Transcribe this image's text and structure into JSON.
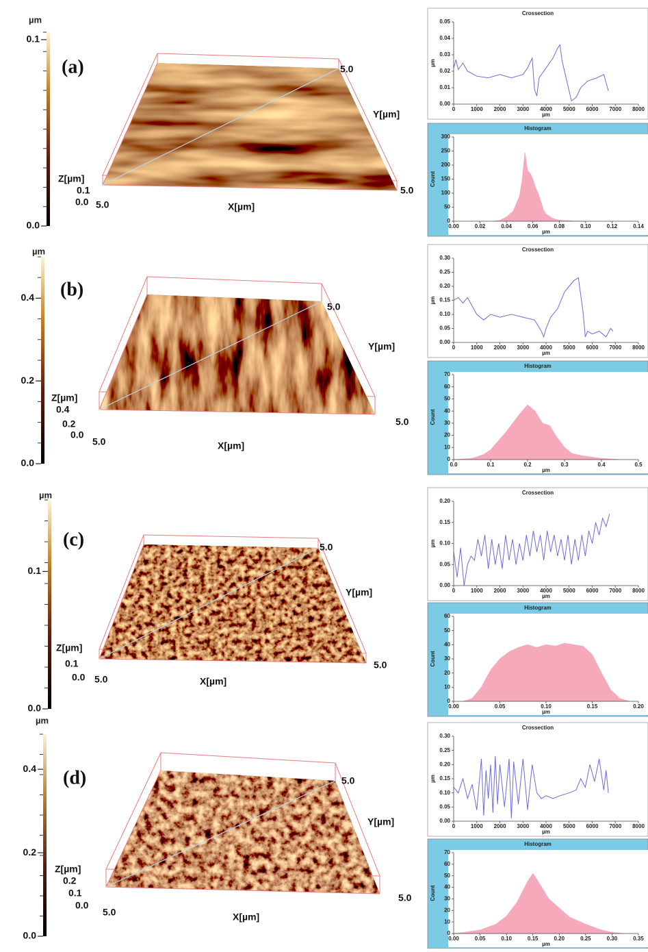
{
  "panels": [
    {
      "label": "(a)",
      "colorbar": {
        "unit": "µm",
        "ylim": [
          0,
          0.104
        ],
        "ticks": [
          {
            "value": 0,
            "label": "0.0"
          },
          0.1
        ]
      },
      "surface": {
        "z_label": "Z[µm]",
        "z_ticks": [
          "0.1",
          "0.0"
        ],
        "origin": "5.0",
        "x_label": "X[µm]",
        "x_end": "5.0",
        "y_label": "Y[µm]",
        "y_end": "5.0"
      }
    },
    {
      "label": "(b)",
      "colorbar": {
        "unit": "µm",
        "ylim": [
          0,
          0.5
        ],
        "ticks": [
          {
            "value": 0,
            "label": "0.0"
          },
          0.2,
          0.4
        ]
      },
      "surface": {
        "z_label": "Z[µm]",
        "z_ticks": [
          "0.4",
          "0.2",
          "0.0"
        ],
        "origin": "5.0",
        "x_label": "X[µm]",
        "x_end": "5.0",
        "y_label": "Y[µm]",
        "y_end": "5.0"
      }
    },
    {
      "label": "(c)",
      "colorbar": {
        "unit": "µm",
        "ylim": [
          0,
          0.152
        ],
        "ticks": [
          {
            "value": 0,
            "label": "0.0"
          },
          0.1
        ]
      },
      "surface": {
        "z_label": "Z[µm]",
        "z_ticks": [
          "0.1",
          "0.0"
        ],
        "origin": "5.0",
        "x_label": "X[µm]",
        "x_end": "5.0",
        "y_label": "Y[µm]",
        "y_end": "5.0"
      }
    },
    {
      "label": "(d)",
      "colorbar": {
        "unit": "µm",
        "ylim": [
          0,
          0.484
        ],
        "ticks": [
          {
            "value": 0,
            "label": "0.0"
          },
          0.2,
          0.4
        ]
      },
      "surface": {
        "z_label": "Z[µm]",
        "z_ticks": [
          "0.2",
          "0.1",
          "0.0"
        ],
        "origin": "5.0",
        "x_label": "X[µm]",
        "x_end": "5.0",
        "y_label": "Y[µm]",
        "y_end": "5.0"
      }
    }
  ],
  "chart_data": [
    {
      "type": "line",
      "title": "Crossection",
      "xlabel": "µm",
      "ylabel": "µm",
      "color": "#6b6bd6",
      "x": [
        0,
        100,
        200,
        400,
        600,
        1000,
        1500,
        2000,
        2500,
        3000,
        3200,
        3400,
        3500,
        3600,
        3700,
        4000,
        4300,
        4500,
        4600,
        4700,
        4900,
        5100,
        5300,
        5500,
        5800,
        6200,
        6500,
        6700
      ],
      "values": [
        0.022,
        0.027,
        0.021,
        0.025,
        0.02,
        0.017,
        0.016,
        0.018,
        0.016,
        0.018,
        0.022,
        0.028,
        0.009,
        0.005,
        0.016,
        0.022,
        0.028,
        0.034,
        0.036,
        0.026,
        0.014,
        0.002,
        0.004,
        0.01,
        0.014,
        0.016,
        0.018,
        0.008
      ],
      "xlim": [
        0,
        8000
      ],
      "xticks": [
        0,
        1000,
        2000,
        3000,
        4000,
        5000,
        6000,
        7000,
        8000
      ],
      "ylim": [
        0,
        0.05
      ],
      "yticks": [
        {
          "value": 0,
          "label": "0.00"
        },
        0.01,
        0.02,
        0.03,
        0.04,
        0.05
      ]
    },
    {
      "type": "area",
      "title": "Histogram",
      "xlabel": "µm",
      "ylabel": "Count",
      "color": "#f6a9bb",
      "x": [
        0.03,
        0.035,
        0.04,
        0.045,
        0.05,
        0.052,
        0.054,
        0.056,
        0.058,
        0.06,
        0.062,
        0.064,
        0.066,
        0.068,
        0.07,
        0.075,
        0.08,
        0.09,
        0.1
      ],
      "values": [
        0,
        3,
        15,
        35,
        90,
        150,
        245,
        180,
        170,
        150,
        120,
        100,
        70,
        40,
        25,
        10,
        4,
        1,
        0
      ],
      "xlim": [
        0,
        0.14
      ],
      "xticks": [
        {
          "value": 0,
          "label": "0.00"
        },
        0.02,
        0.04,
        0.06,
        0.08,
        {
          "value": 0.1,
          "label": "0.10"
        },
        0.12,
        0.14
      ],
      "ylim": [
        0,
        300
      ],
      "yticks": [
        0,
        50,
        100,
        150,
        200,
        250,
        300
      ]
    },
    {
      "type": "line",
      "title": "Crossection",
      "xlabel": "µm",
      "ylabel": "µm",
      "color": "#6b6bd6",
      "x": [
        0,
        200,
        400,
        600,
        800,
        1000,
        1300,
        1600,
        2000,
        2500,
        3000,
        3500,
        3800,
        3900,
        4000,
        4200,
        4500,
        4800,
        5000,
        5200,
        5400,
        5600,
        5700,
        5800,
        6000,
        6300,
        6600,
        6800,
        6900
      ],
      "values": [
        0.15,
        0.16,
        0.14,
        0.16,
        0.13,
        0.1,
        0.08,
        0.1,
        0.09,
        0.1,
        0.09,
        0.08,
        0.04,
        0.02,
        0.05,
        0.09,
        0.12,
        0.18,
        0.2,
        0.22,
        0.23,
        0.11,
        0.02,
        0.04,
        0.03,
        0.04,
        0.02,
        0.05,
        0.04
      ],
      "xlim": [
        0,
        8000
      ],
      "xticks": [
        0,
        1000,
        2000,
        3000,
        4000,
        5000,
        6000,
        7000,
        8000
      ],
      "ylim": [
        0,
        0.3
      ],
      "yticks": [
        {
          "value": 0,
          "label": "0.00"
        },
        0.05,
        {
          "value": 0.1,
          "label": "0.10"
        },
        0.15,
        {
          "value": 0.2,
          "label": "0.20"
        },
        0.25,
        {
          "value": 0.3,
          "label": "0.30"
        }
      ]
    },
    {
      "type": "area",
      "title": "Histogram",
      "xlabel": "µm",
      "ylabel": "Count",
      "color": "#f6a9bb",
      "x": [
        0,
        0.05,
        0.08,
        0.1,
        0.12,
        0.14,
        0.16,
        0.18,
        0.2,
        0.22,
        0.24,
        0.26,
        0.28,
        0.3,
        0.32,
        0.35,
        0.4,
        0.45
      ],
      "values": [
        0,
        1,
        4,
        8,
        15,
        22,
        30,
        38,
        45,
        40,
        30,
        28,
        18,
        10,
        5,
        3,
        1,
        0
      ],
      "xlim": [
        0,
        0.5
      ],
      "xticks": [
        {
          "value": 0,
          "label": "0.0"
        },
        0.1,
        0.2,
        0.3,
        0.4,
        0.5
      ],
      "ylim": [
        0,
        70
      ],
      "yticks": [
        0,
        10,
        20,
        30,
        40,
        50,
        60,
        70
      ]
    },
    {
      "type": "line",
      "title": "Crossection",
      "xlabel": "µm",
      "ylabel": "µm",
      "color": "#6b6bd6",
      "x": [
        0,
        150,
        300,
        450,
        600,
        750,
        900,
        1050,
        1200,
        1350,
        1500,
        1650,
        1800,
        1950,
        2100,
        2250,
        2400,
        2550,
        2700,
        2850,
        3000,
        3150,
        3300,
        3450,
        3600,
        3750,
        3900,
        4050,
        4200,
        4350,
        4500,
        4650,
        4800,
        4950,
        5100,
        5250,
        5400,
        5550,
        5700,
        5850,
        6000,
        6150,
        6300,
        6450,
        6600,
        6750
      ],
      "values": [
        0.08,
        0.02,
        0.09,
        0,
        0.05,
        0.07,
        0.06,
        0.11,
        0.07,
        0.12,
        0.04,
        0.11,
        0.05,
        0.1,
        0.04,
        0.12,
        0.06,
        0.11,
        0.05,
        0.1,
        0.06,
        0.12,
        0.07,
        0.13,
        0.08,
        0.12,
        0.06,
        0.13,
        0.08,
        0.12,
        0.07,
        0.11,
        0.06,
        0.12,
        0.05,
        0.11,
        0.06,
        0.12,
        0.07,
        0.13,
        0.1,
        0.15,
        0.12,
        0.16,
        0.14,
        0.17
      ],
      "xlim": [
        0,
        8000
      ],
      "xticks": [
        0,
        1000,
        2000,
        3000,
        4000,
        5000,
        6000,
        7000,
        8000
      ],
      "ylim": [
        0,
        0.2
      ],
      "yticks": [
        {
          "value": 0,
          "label": "0.00"
        },
        0.05,
        {
          "value": 0.1,
          "label": "0.10"
        },
        0.15,
        {
          "value": 0.2,
          "label": "0.20"
        }
      ]
    },
    {
      "type": "area",
      "title": "Histogram",
      "xlabel": "µm",
      "ylabel": "Count",
      "color": "#f6a9bb",
      "x": [
        0.01,
        0.02,
        0.03,
        0.04,
        0.05,
        0.06,
        0.07,
        0.08,
        0.09,
        0.1,
        0.11,
        0.12,
        0.13,
        0.14,
        0.15,
        0.16,
        0.17,
        0.18,
        0.19
      ],
      "values": [
        0,
        2,
        10,
        22,
        30,
        35,
        38,
        40,
        38,
        40,
        39,
        41,
        40,
        39,
        33,
        20,
        8,
        2,
        0
      ],
      "xlim": [
        0,
        0.2
      ],
      "xticks": [
        {
          "value": 0,
          "label": "0.00"
        },
        0.05,
        {
          "value": 0.1,
          "label": "0.10"
        },
        0.15,
        {
          "value": 0.2,
          "label": "0.20"
        }
      ],
      "ylim": [
        0,
        60
      ],
      "yticks": [
        0,
        10,
        20,
        30,
        40,
        50,
        60
      ]
    },
    {
      "type": "line",
      "title": "Crossection",
      "xlabel": "µm",
      "ylabel": "µm",
      "color": "#6b6bd6",
      "x": [
        0,
        200,
        400,
        600,
        800,
        1000,
        1200,
        1300,
        1400,
        1500,
        1600,
        1700,
        1800,
        1900,
        2000,
        2200,
        2400,
        2500,
        2600,
        2800,
        3000,
        3200,
        3400,
        3600,
        3800,
        4000,
        4300,
        4600,
        5000,
        5300,
        5500,
        5700,
        5900,
        6100,
        6300,
        6500,
        6600,
        6700
      ],
      "values": [
        0.12,
        0.1,
        0.15,
        0.08,
        0.13,
        0.04,
        0.22,
        0.02,
        0.18,
        0.08,
        0.2,
        0.03,
        0.23,
        0.06,
        0.2,
        0.05,
        0.22,
        0.01,
        0.21,
        0.06,
        0.22,
        0.04,
        0.2,
        0.1,
        0.08,
        0.09,
        0.08,
        0.09,
        0.1,
        0.11,
        0.15,
        0.12,
        0.2,
        0.14,
        0.22,
        0.11,
        0.18,
        0.1
      ],
      "xlim": [
        0,
        8000
      ],
      "xticks": [
        0,
        1000,
        2000,
        3000,
        4000,
        5000,
        6000,
        7000,
        8000
      ],
      "ylim": [
        0,
        0.3
      ],
      "yticks": [
        {
          "value": 0,
          "label": "0.00"
        },
        0.05,
        {
          "value": 0.1,
          "label": "0.10"
        },
        0.15,
        {
          "value": 0.2,
          "label": "0.20"
        },
        0.25,
        {
          "value": 0.3,
          "label": "0.30"
        }
      ]
    },
    {
      "type": "area",
      "title": "Histogram",
      "xlabel": "µm",
      "ylabel": "Count",
      "color": "#f6a9bb",
      "x": [
        0,
        0.02,
        0.05,
        0.08,
        0.1,
        0.12,
        0.14,
        0.15,
        0.16,
        0.18,
        0.2,
        0.22,
        0.25,
        0.28,
        0.3,
        0.32
      ],
      "values": [
        0,
        1,
        3,
        8,
        15,
        27,
        45,
        52,
        45,
        30,
        22,
        14,
        8,
        3,
        1,
        0
      ],
      "xlim": [
        0,
        0.35
      ],
      "xticks": [
        {
          "value": 0,
          "label": "0.00"
        },
        0.05,
        {
          "value": 0.1,
          "label": "0.10"
        },
        0.15,
        {
          "value": 0.2,
          "label": "0.20"
        },
        0.25,
        {
          "value": 0.3,
          "label": "0.30"
        },
        0.35
      ],
      "ylim": [
        0,
        70
      ],
      "yticks": [
        0,
        10,
        20,
        30,
        40,
        50,
        60,
        70
      ]
    }
  ]
}
